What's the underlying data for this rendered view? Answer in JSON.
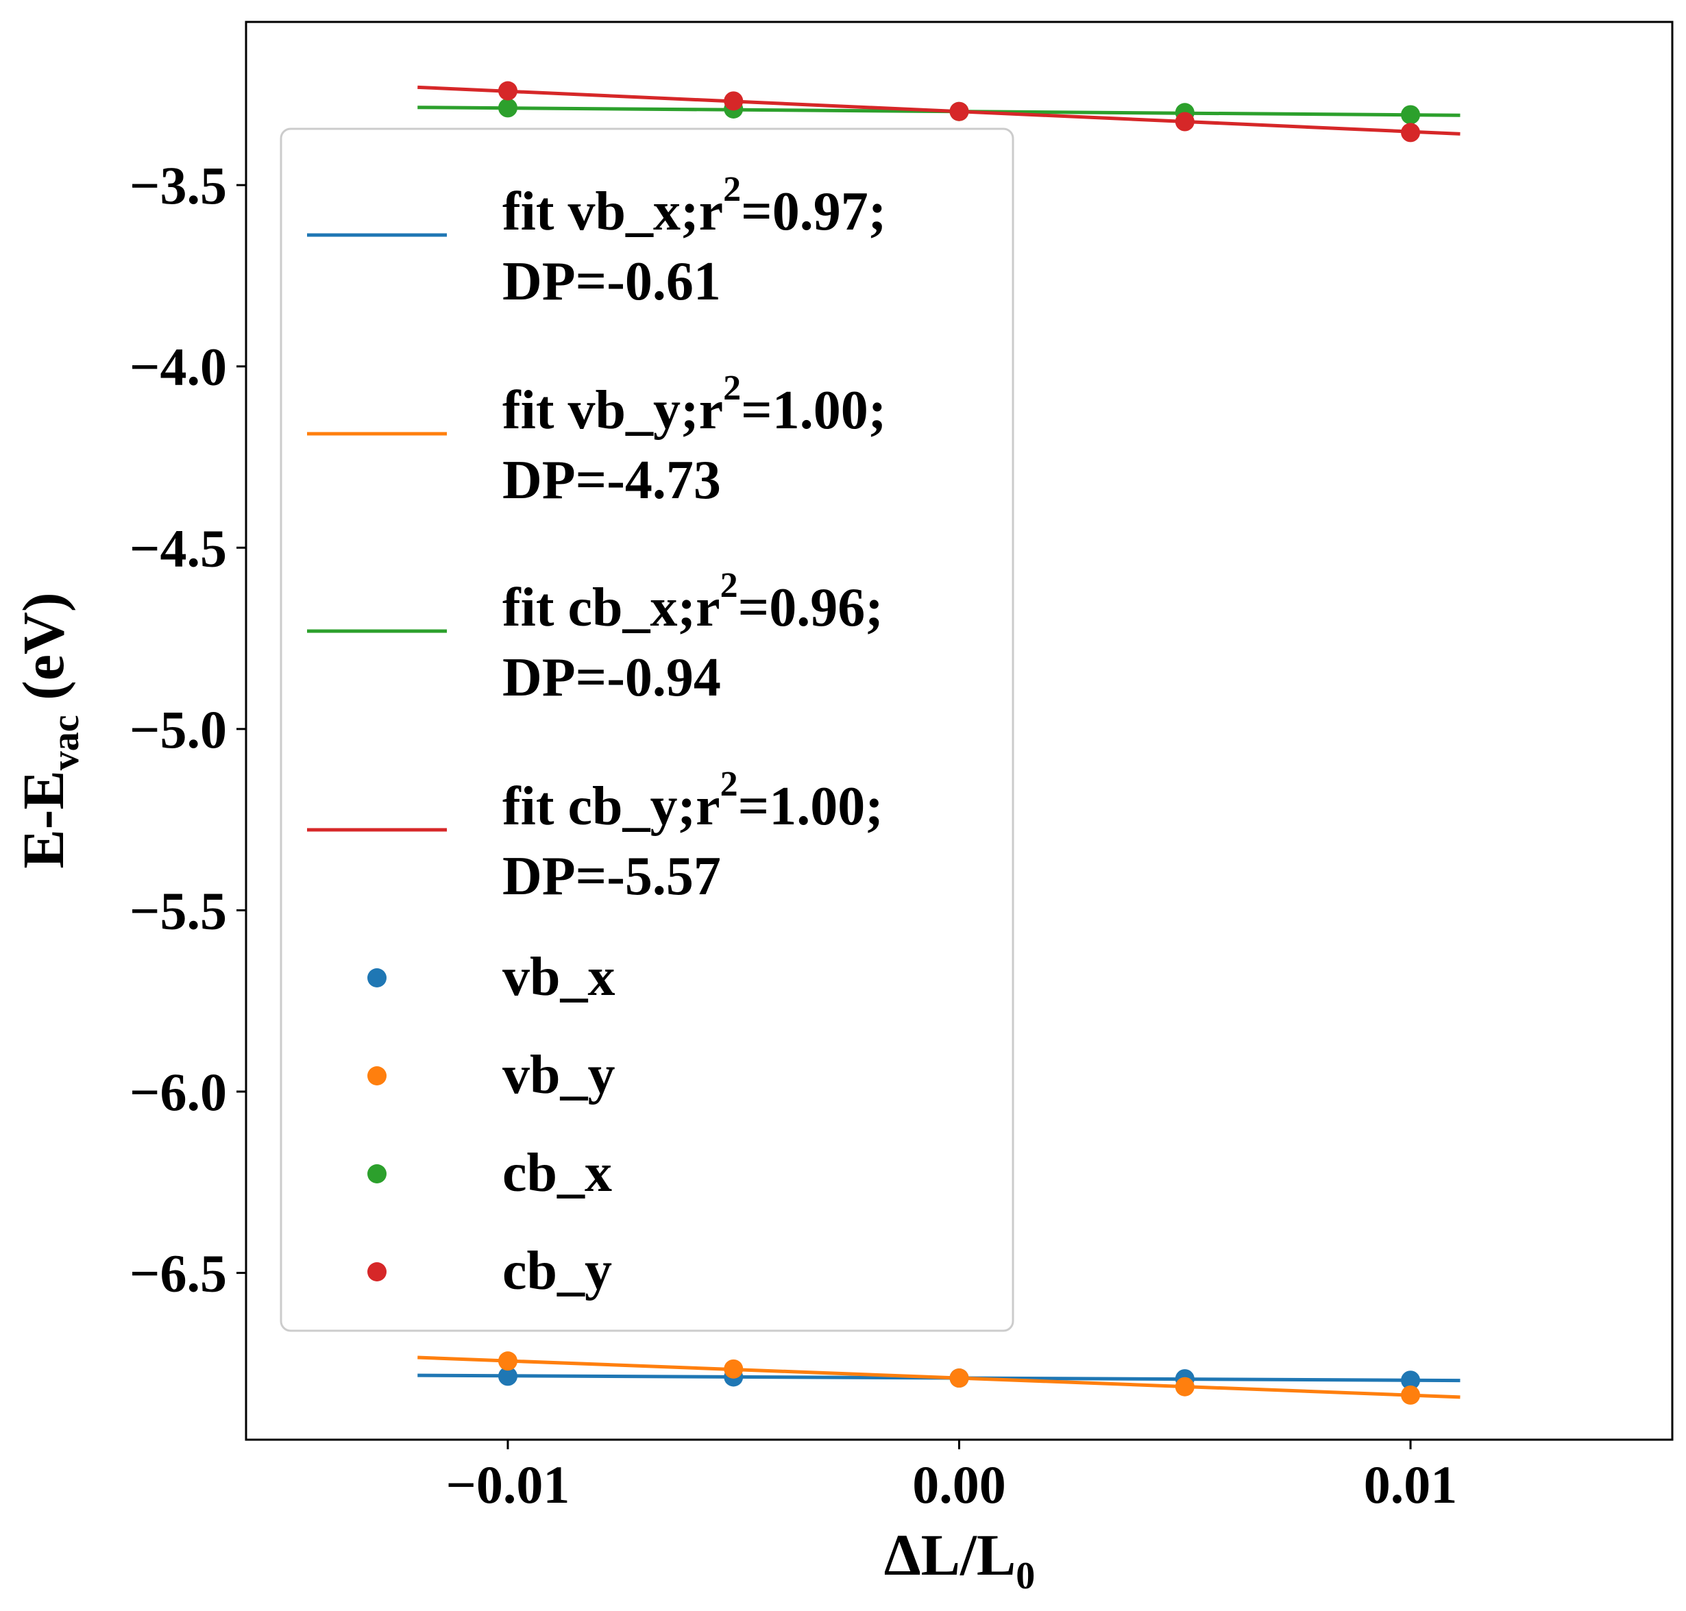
{
  "chart_data": {
    "type": "scatter",
    "xlabel": "ΔL/L",
    "xlabel_sub": "0",
    "ylabel": "E-E",
    "ylabel_sub": "vac",
    "ylabel_unit": " (eV)",
    "xlim": [
      -0.0158,
      0.0158
    ],
    "ylim": [
      -6.96,
      -3.05
    ],
    "x_ticks": [
      -0.01,
      0.0,
      0.01
    ],
    "x_tick_labels": [
      "−0.01",
      "0.00",
      "0.01"
    ],
    "y_ticks": [
      -3.5,
      -4.0,
      -4.5,
      -5.0,
      -5.5,
      -6.0,
      -6.5
    ],
    "y_tick_labels": [
      "−3.5",
      "−4.0",
      "−4.5",
      "−5.0",
      "−5.5",
      "−6.0",
      "−6.5"
    ],
    "grid": false,
    "legend_position": "upper-left",
    "fit_x_range": [
      -0.012,
      0.0111
    ],
    "series": [
      {
        "name": "vb_x",
        "color": "#1f77b4",
        "x": [
          -0.01,
          -0.005,
          0.0,
          0.005,
          0.01
        ],
        "y": [
          -6.785,
          -6.787,
          -6.79,
          -6.792,
          -6.796
        ],
        "fit_name": "fit vb_x;r",
        "fit_sup": "2",
        "fit_rest": "=0.97;",
        "fit_line2": "DP=-0.61",
        "fit_intercept": -6.79,
        "fit_slope": -0.61
      },
      {
        "name": "vb_y",
        "color": "#ff7f0e",
        "x": [
          -0.01,
          -0.005,
          0.0,
          0.005,
          0.01
        ],
        "y": [
          -6.743,
          -6.765,
          -6.79,
          -6.814,
          -6.837
        ],
        "fit_name": "fit vb_y;r",
        "fit_sup": "2",
        "fit_rest": "=1.00;",
        "fit_line2": "DP=-4.73",
        "fit_intercept": -6.79,
        "fit_slope": -4.73
      },
      {
        "name": "cb_x",
        "color": "#2ca02c",
        "x": [
          -0.01,
          -0.005,
          0.0,
          0.005,
          0.01
        ],
        "y": [
          -3.287,
          -3.29,
          -3.297,
          -3.3,
          -3.306
        ],
        "fit_name": "fit cb_x;r",
        "fit_sup": "2",
        "fit_rest": "=0.96;",
        "fit_line2": "DP=-0.94",
        "fit_intercept": -3.297,
        "fit_slope": -0.94
      },
      {
        "name": "cb_y",
        "color": "#d62728",
        "x": [
          -0.01,
          -0.005,
          0.0,
          0.005,
          0.01
        ],
        "y": [
          -3.24,
          -3.268,
          -3.297,
          -3.325,
          -3.355
        ],
        "fit_name": "fit cb_y;r",
        "fit_sup": "2",
        "fit_rest": "=1.00;",
        "fit_line2": "DP=-5.57",
        "fit_intercept": -3.297,
        "fit_slope": -5.57
      }
    ]
  }
}
